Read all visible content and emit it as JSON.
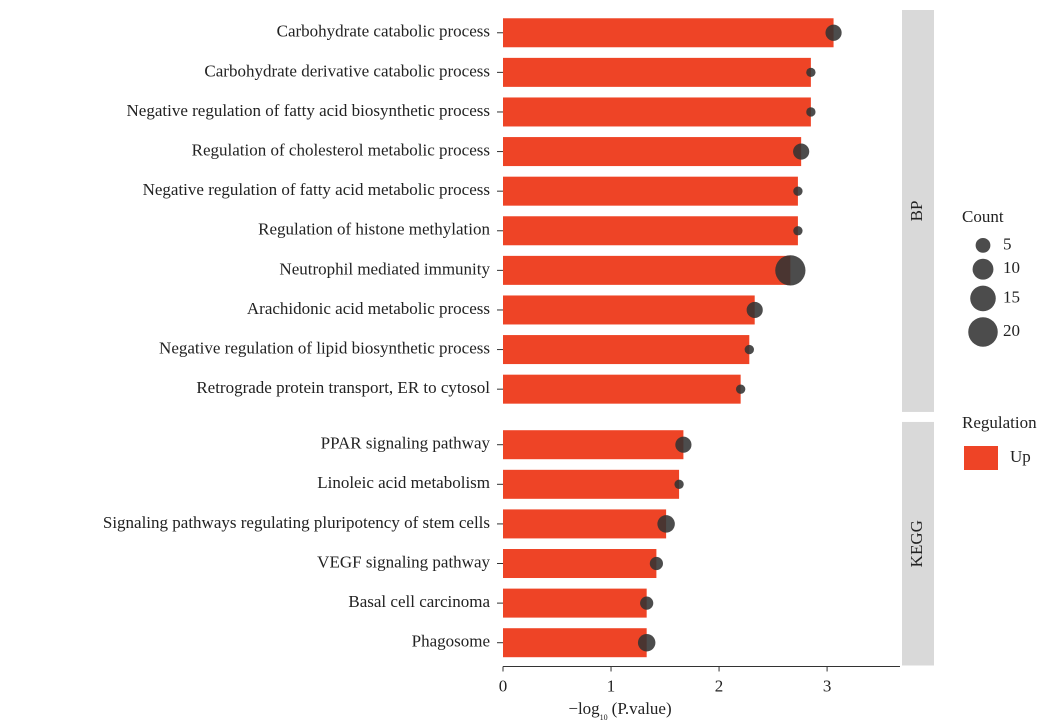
{
  "chart_data": {
    "type": "bar",
    "xlabel": {
      "text": "−log",
      "sub": "10",
      "rest": "(P.value)"
    },
    "xlim": [
      0,
      3.675
    ],
    "xticks": [
      0,
      1,
      2,
      3
    ],
    "color": "#ee4426",
    "point_color": "#333333",
    "panels": [
      {
        "name": "BP",
        "categories": [
          "Carbohydrate catabolic process",
          "Carbohydrate derivative catabolic process",
          "Negative regulation of fatty acid biosynthetic process",
          "Regulation of cholesterol metabolic process",
          "Negative regulation of fatty acid metabolic process",
          "Regulation of histone methylation",
          "Neutrophil mediated immunity",
          "Arachidonic acid metabolic process",
          "Negative regulation of lipid biosynthetic process",
          "Retrograde protein transport, ER to cytosol"
        ],
        "values": [
          3.06,
          2.85,
          2.85,
          2.76,
          2.73,
          2.73,
          2.66,
          2.33,
          2.28,
          2.2
        ],
        "counts": [
          6,
          2,
          2,
          6,
          2,
          2,
          21,
          6,
          2,
          2
        ]
      },
      {
        "name": "KEGG",
        "categories": [
          "PPAR signaling pathway",
          "Linoleic acid metabolism",
          "Signaling pathways regulating pluripotency of stem cells",
          "VEGF signaling pathway",
          "Basal cell carcinoma",
          "Phagosome"
        ],
        "values": [
          1.67,
          1.63,
          1.51,
          1.42,
          1.33,
          1.33
        ],
        "counts": [
          6,
          2,
          7,
          4,
          4,
          7
        ]
      }
    ],
    "size_legend": {
      "title": "Count",
      "values": [
        5,
        10,
        15,
        20
      ]
    },
    "color_legend": {
      "title": "Regulation",
      "name": "Up"
    }
  }
}
